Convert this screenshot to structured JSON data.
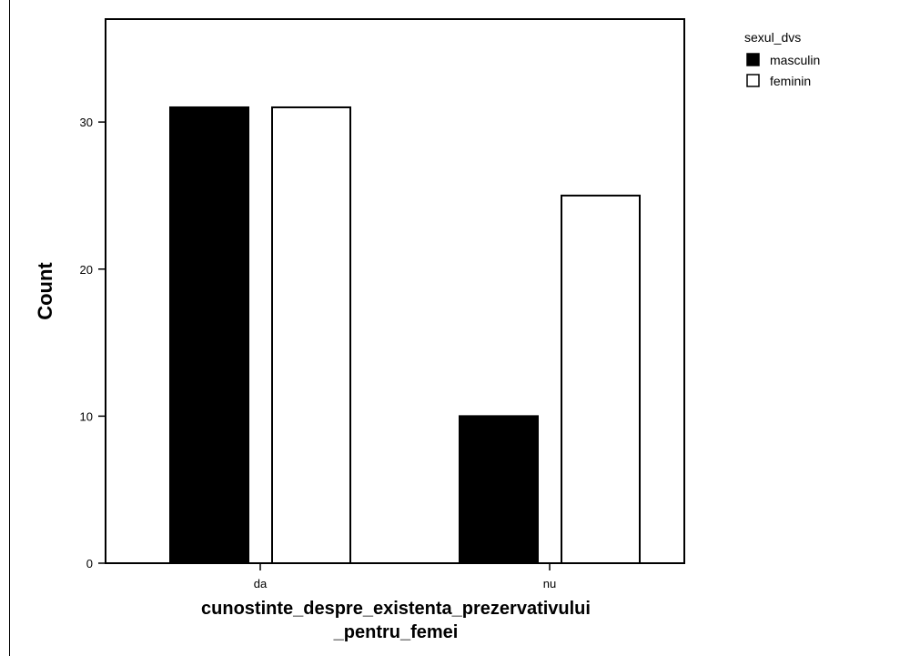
{
  "chart_data": {
    "type": "bar",
    "categories": [
      "da",
      "nu"
    ],
    "series": [
      {
        "name": "masculin",
        "values": [
          31,
          10
        ],
        "color": "#000000"
      },
      {
        "name": "feminin",
        "values": [
          31,
          25
        ],
        "color": "#ffffff"
      }
    ],
    "ylabel": "Count",
    "xlabel_lines": [
      "cunostinte_despre_existenta_prezervativului",
      "_pentru_femei"
    ],
    "legend_title": "sexul_dvs",
    "legend_position": "top-right",
    "yticks": [
      0,
      10,
      20,
      30
    ],
    "ylim": [
      0,
      37
    ],
    "grid": false
  }
}
